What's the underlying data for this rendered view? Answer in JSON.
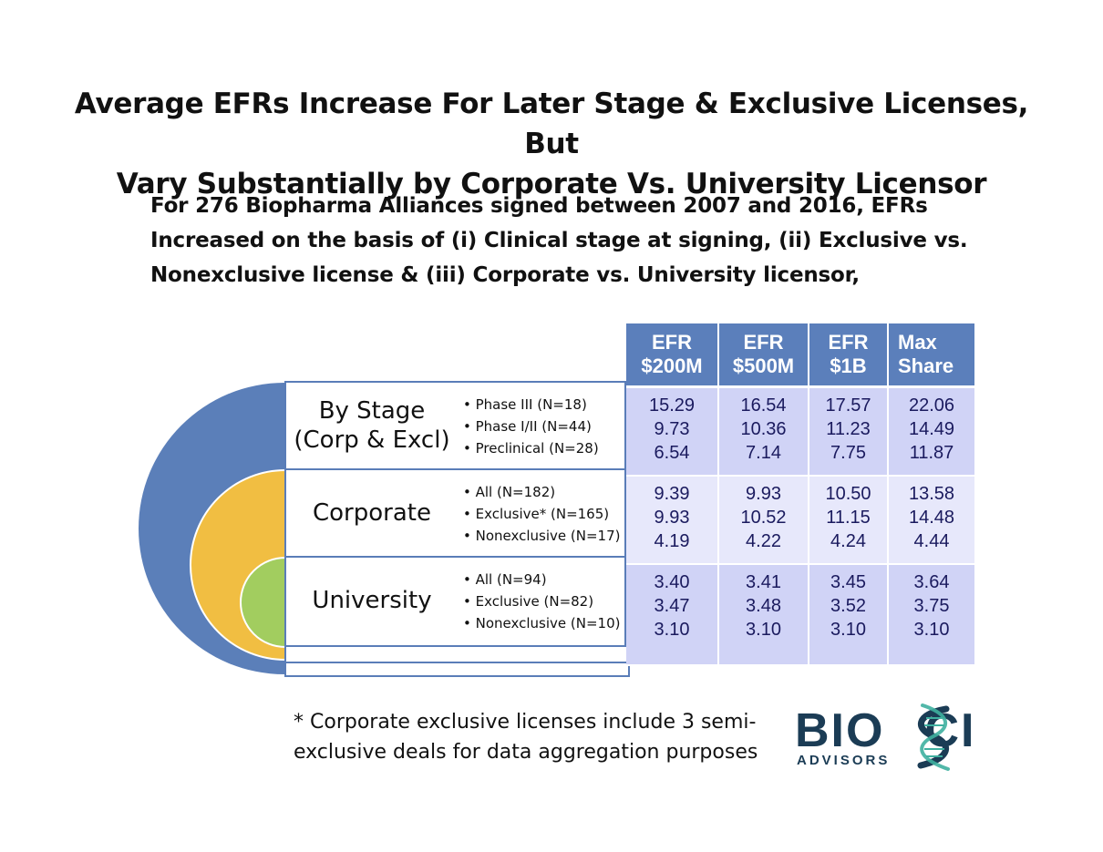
{
  "title": {
    "line1": "Average EFRs Increase For Later Stage & Exclusive Licenses, But",
    "line2": "Vary Substantially by Corporate Vs. University Licensor"
  },
  "subtitle": {
    "line1": "For 276 Biopharma Alliances signed between 2007 and 2016, EFRs",
    "line2": "Increased on the basis of (i) Clinical stage at signing, (ii) Exclusive vs.",
    "line3": "Nonexclusive license & (iii) Corporate vs. University licensor,"
  },
  "colors": {
    "outer_circle": "#5b7fb9",
    "middle_circle": "#f1be42",
    "inner_circle": "#a2cd5f",
    "header_fill": "#5b7fbb",
    "row_fill_dark": "#d0d3f6",
    "row_fill_light": "#e7e8fb",
    "value_text": "#1a1a5e",
    "logo_text": "#1b3c55",
    "logo_accent": "#3fb0a0"
  },
  "table": {
    "headers": [
      {
        "line1": "EFR",
        "line2": "$200M"
      },
      {
        "line1": "EFR",
        "line2": "$500M"
      },
      {
        "line1": "EFR",
        "line2": "$1B"
      },
      {
        "line1": "Max",
        "line2": "Share"
      }
    ],
    "groups": [
      {
        "label_line1": "By Stage",
        "label_line2": "(Corp & Excl)",
        "bullets": [
          "Phase III (N=18)",
          "Phase I/II (N=44)",
          "Preclinical (N=28)"
        ],
        "efr_200m": [
          "15.29",
          "9.73",
          "6.54"
        ],
        "efr_500m": [
          "16.54",
          "10.36",
          "7.14"
        ],
        "efr_1b": [
          "17.57",
          "11.23",
          "7.75"
        ],
        "max_share": [
          "22.06",
          "14.49",
          "11.87"
        ]
      },
      {
        "label_line1": "Corporate",
        "label_line2": "",
        "bullets": [
          "All (N=182)",
          "Exclusive* (N=165)",
          "Nonexclusive (N=17)"
        ],
        "efr_200m": [
          "9.39",
          "9.93",
          "4.19"
        ],
        "efr_500m": [
          "9.93",
          "10.52",
          "4.22"
        ],
        "efr_1b": [
          "10.50",
          "11.15",
          "4.24"
        ],
        "max_share": [
          "13.58",
          "14.48",
          "4.44"
        ]
      },
      {
        "label_line1": "University",
        "label_line2": "",
        "bullets": [
          "All (N=94)",
          "Exclusive (N=82)",
          "Nonexclusive (N=10)"
        ],
        "efr_200m": [
          "3.40",
          "3.47",
          "3.10"
        ],
        "efr_500m": [
          "3.41",
          "3.48",
          "3.10"
        ],
        "efr_1b": [
          "3.45",
          "3.52",
          "3.10"
        ],
        "max_share": [
          "3.64",
          "3.75",
          "3.10"
        ]
      }
    ]
  },
  "footnote": {
    "line1": "* Corporate exclusive licenses include 3 semi-",
    "line2": "exclusive deals for data aggregation purposes"
  },
  "logo": {
    "part1": "BIO",
    "part2": "CI",
    "subtext": "ADVISORS",
    "icon": "dna-helix-icon"
  }
}
